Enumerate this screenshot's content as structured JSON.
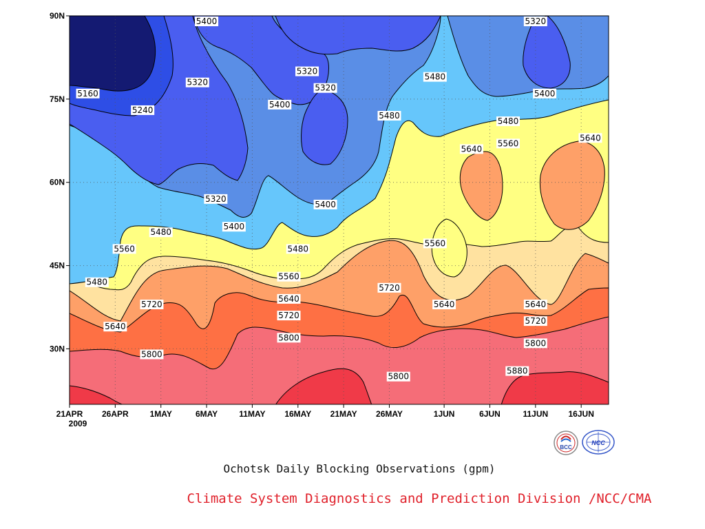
{
  "chart_data": {
    "type": "contour",
    "title": "Ochotsk Daily Blocking Observations (gpm)",
    "credit": "Climate System Diagnostics and Prediction Division /NCC/CMA",
    "year_label": "2009",
    "x_ticks": [
      "21APR",
      "26APR",
      "1MAY",
      "6MAY",
      "11MAY",
      "16MAY",
      "21MAY",
      "26MAY",
      "1JUN",
      "6JUN",
      "11JUN",
      "16JUN"
    ],
    "y_ticks": [
      "90N",
      "75N",
      "60N",
      "45N",
      "30N"
    ],
    "y_tick_values": [
      90,
      75,
      60,
      45,
      30
    ],
    "ylim": [
      20,
      90
    ],
    "x_range": [
      "2009-04-21",
      "2009-06-19"
    ],
    "grid": "dotted",
    "levels": [
      5160,
      5240,
      5320,
      5400,
      5480,
      5560,
      5640,
      5720,
      5800,
      5880
    ],
    "level_colors": {
      "below_5160": "#141a72",
      "5160_5240": "#1f35b4",
      "5240_5320": "#2e4ee6",
      "5320_5400": "#4a5ef0",
      "5400_5480": "#5a8ee6",
      "5480_5560": "#66c6fb",
      "5560_5640": "#ffff82",
      "5640_5720": "#ffe2a0",
      "5720_5800": "#fea068",
      "5800_5880": "#fe7044",
      "5880_5960": "#f56d78",
      "above_5960": "#f03a48"
    },
    "contour_labels": [
      {
        "text": "5400",
        "date": "2009-05-06",
        "lat": 89
      },
      {
        "text": "5320",
        "date": "2009-06-11",
        "lat": 89
      },
      {
        "text": "5160",
        "date": "2009-04-23",
        "lat": 76
      },
      {
        "text": "5240",
        "date": "2009-04-29",
        "lat": 73
      },
      {
        "text": "5320",
        "date": "2009-05-05",
        "lat": 78
      },
      {
        "text": "5400",
        "date": "2009-05-14",
        "lat": 74
      },
      {
        "text": "5320",
        "date": "2009-05-17",
        "lat": 80
      },
      {
        "text": "5320",
        "date": "2009-05-19",
        "lat": 77
      },
      {
        "text": "5480",
        "date": "2009-05-31",
        "lat": 79
      },
      {
        "text": "5400",
        "date": "2009-06-12",
        "lat": 76
      },
      {
        "text": "5480",
        "date": "2009-05-26",
        "lat": 72
      },
      {
        "text": "5480",
        "date": "2009-06-08",
        "lat": 71
      },
      {
        "text": "5640",
        "date": "2009-06-04",
        "lat": 66
      },
      {
        "text": "5560",
        "date": "2009-06-08",
        "lat": 67
      },
      {
        "text": "5640",
        "date": "2009-06-17",
        "lat": 68
      },
      {
        "text": "5320",
        "date": "2009-05-07",
        "lat": 57
      },
      {
        "text": "5400",
        "date": "2009-05-19",
        "lat": 56
      },
      {
        "text": "5400",
        "date": "2009-05-09",
        "lat": 52
      },
      {
        "text": "5480",
        "date": "2009-05-01",
        "lat": 51
      },
      {
        "text": "5560",
        "date": "2009-04-27",
        "lat": 48
      },
      {
        "text": "5480",
        "date": "2009-04-24",
        "lat": 42
      },
      {
        "text": "5480",
        "date": "2009-05-16",
        "lat": 48
      },
      {
        "text": "5560",
        "date": "2009-05-31",
        "lat": 49
      },
      {
        "text": "5560",
        "date": "2009-05-15",
        "lat": 43
      },
      {
        "text": "5640",
        "date": "2009-05-15",
        "lat": 39
      },
      {
        "text": "5720",
        "date": "2009-04-30",
        "lat": 38
      },
      {
        "text": "5720",
        "date": "2009-05-26",
        "lat": 41
      },
      {
        "text": "5640",
        "date": "2009-06-01",
        "lat": 38
      },
      {
        "text": "5640",
        "date": "2009-06-11",
        "lat": 38
      },
      {
        "text": "5720",
        "date": "2009-05-15",
        "lat": 36
      },
      {
        "text": "5640",
        "date": "2009-04-26",
        "lat": 34
      },
      {
        "text": "5720",
        "date": "2009-06-11",
        "lat": 35
      },
      {
        "text": "5800",
        "date": "2009-05-15",
        "lat": 32
      },
      {
        "text": "5800",
        "date": "2009-04-30",
        "lat": 29
      },
      {
        "text": "5800",
        "date": "2009-06-11",
        "lat": 31
      },
      {
        "text": "5800",
        "date": "2009-05-27",
        "lat": 25
      },
      {
        "text": "5880",
        "date": "2009-06-09",
        "lat": 26
      }
    ]
  },
  "logos": [
    {
      "name": "bcc-logo",
      "text": "BCC"
    },
    {
      "name": "ncc-logo",
      "text": "NCC"
    }
  ]
}
